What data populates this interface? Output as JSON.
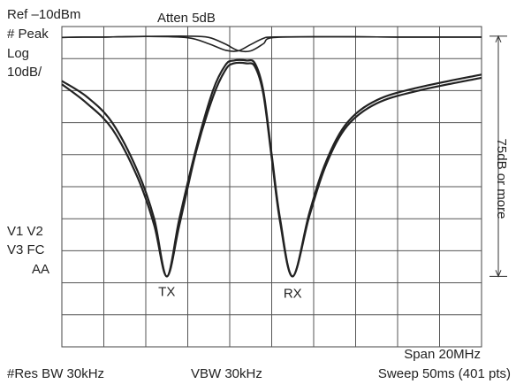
{
  "header": {
    "ref": "Ref –10dBm",
    "atten": "Atten 5dB",
    "peak": "# Peak",
    "log": "Log",
    "scale": "10dB/"
  },
  "side": {
    "line1": "V1  V2",
    "line2": "V3  FC",
    "line3": "AA"
  },
  "footer": {
    "span": "Span 20MHz",
    "res_bw": "#Res BW 30kHz",
    "vbw": "VBW 30kHz",
    "sweep": "Sweep 50ms (401 pts)"
  },
  "chart_data": {
    "type": "line",
    "title": "",
    "ylabel": "",
    "xlabel": "",
    "grid": true,
    "y_divisions": 10,
    "x_divisions": 10,
    "ylim": [
      -110,
      -10
    ],
    "xlim": [
      0,
      10
    ],
    "annotations": {
      "tx": "TX",
      "rx": "RX",
      "range_label": "75dB or more"
    },
    "range_marker": {
      "y_top": -13,
      "y_bottom": -88
    },
    "series": [
      {
        "color": "#222222",
        "x": [
          0,
          0.5,
          1,
          2,
          3,
          3.5,
          3.9,
          4.2,
          4.5,
          4.8,
          5.0,
          6.0,
          7.0,
          8.0,
          9.0,
          10.0
        ],
        "y": [
          -13.4,
          -13.3,
          -13.3,
          -13.1,
          -13.0,
          -13.4,
          -15.5,
          -17.5,
          -17.6,
          -15.4,
          -13.5,
          -13.2,
          -13.2,
          -13.3,
          -13.3,
          -13.3
        ]
      },
      {
        "color": "#222222",
        "x": [
          0,
          0.5,
          1,
          2,
          3,
          3.5,
          3.9,
          4.2,
          4.5,
          4.8,
          5.0,
          6.0,
          7.0,
          8.0,
          9.0,
          10.0
        ],
        "y": [
          -13.4,
          -13.3,
          -13.3,
          -13.1,
          -13.5,
          -15.4,
          -17.4,
          -17.6,
          -15.6,
          -13.7,
          -13.3,
          -13.2,
          -13.2,
          -13.3,
          -13.3,
          -13.3
        ]
      },
      {
        "color": "#222222",
        "x": [
          0,
          0.6,
          1.2,
          1.8,
          2.2,
          2.5,
          2.8,
          3.2,
          3.6,
          3.9,
          4.1,
          4.4,
          4.6,
          4.8,
          5.0,
          5.2,
          5.5,
          5.9,
          6.3,
          6.8,
          7.5,
          8.5,
          10.0
        ],
        "y": [
          -27.0,
          -32.0,
          -40.0,
          -55.0,
          -70.0,
          -88.0,
          -70.0,
          -48.0,
          -30.0,
          -22.0,
          -20.6,
          -20.6,
          -21.5,
          -30.0,
          -50.0,
          -70.0,
          -88.0,
          -68.0,
          -52.0,
          -40.0,
          -33.0,
          -29.0,
          -25.0
        ]
      },
      {
        "color": "#222222",
        "x": [
          0,
          0.6,
          1.2,
          1.8,
          2.2,
          2.5,
          2.8,
          3.2,
          3.6,
          3.9,
          4.1,
          4.4,
          4.6,
          4.8,
          5.0,
          5.2,
          5.5,
          5.9,
          6.3,
          6.8,
          7.5,
          8.5,
          10.0
        ],
        "y": [
          -28.0,
          -34.0,
          -42.0,
          -57.0,
          -72.0,
          -88.0,
          -72.0,
          -49.0,
          -32.0,
          -23.5,
          -21.5,
          -21.5,
          -22.5,
          -31.0,
          -51.0,
          -71.0,
          -88.0,
          -69.0,
          -53.0,
          -41.0,
          -34.0,
          -30.0,
          -26.0
        ]
      }
    ]
  }
}
